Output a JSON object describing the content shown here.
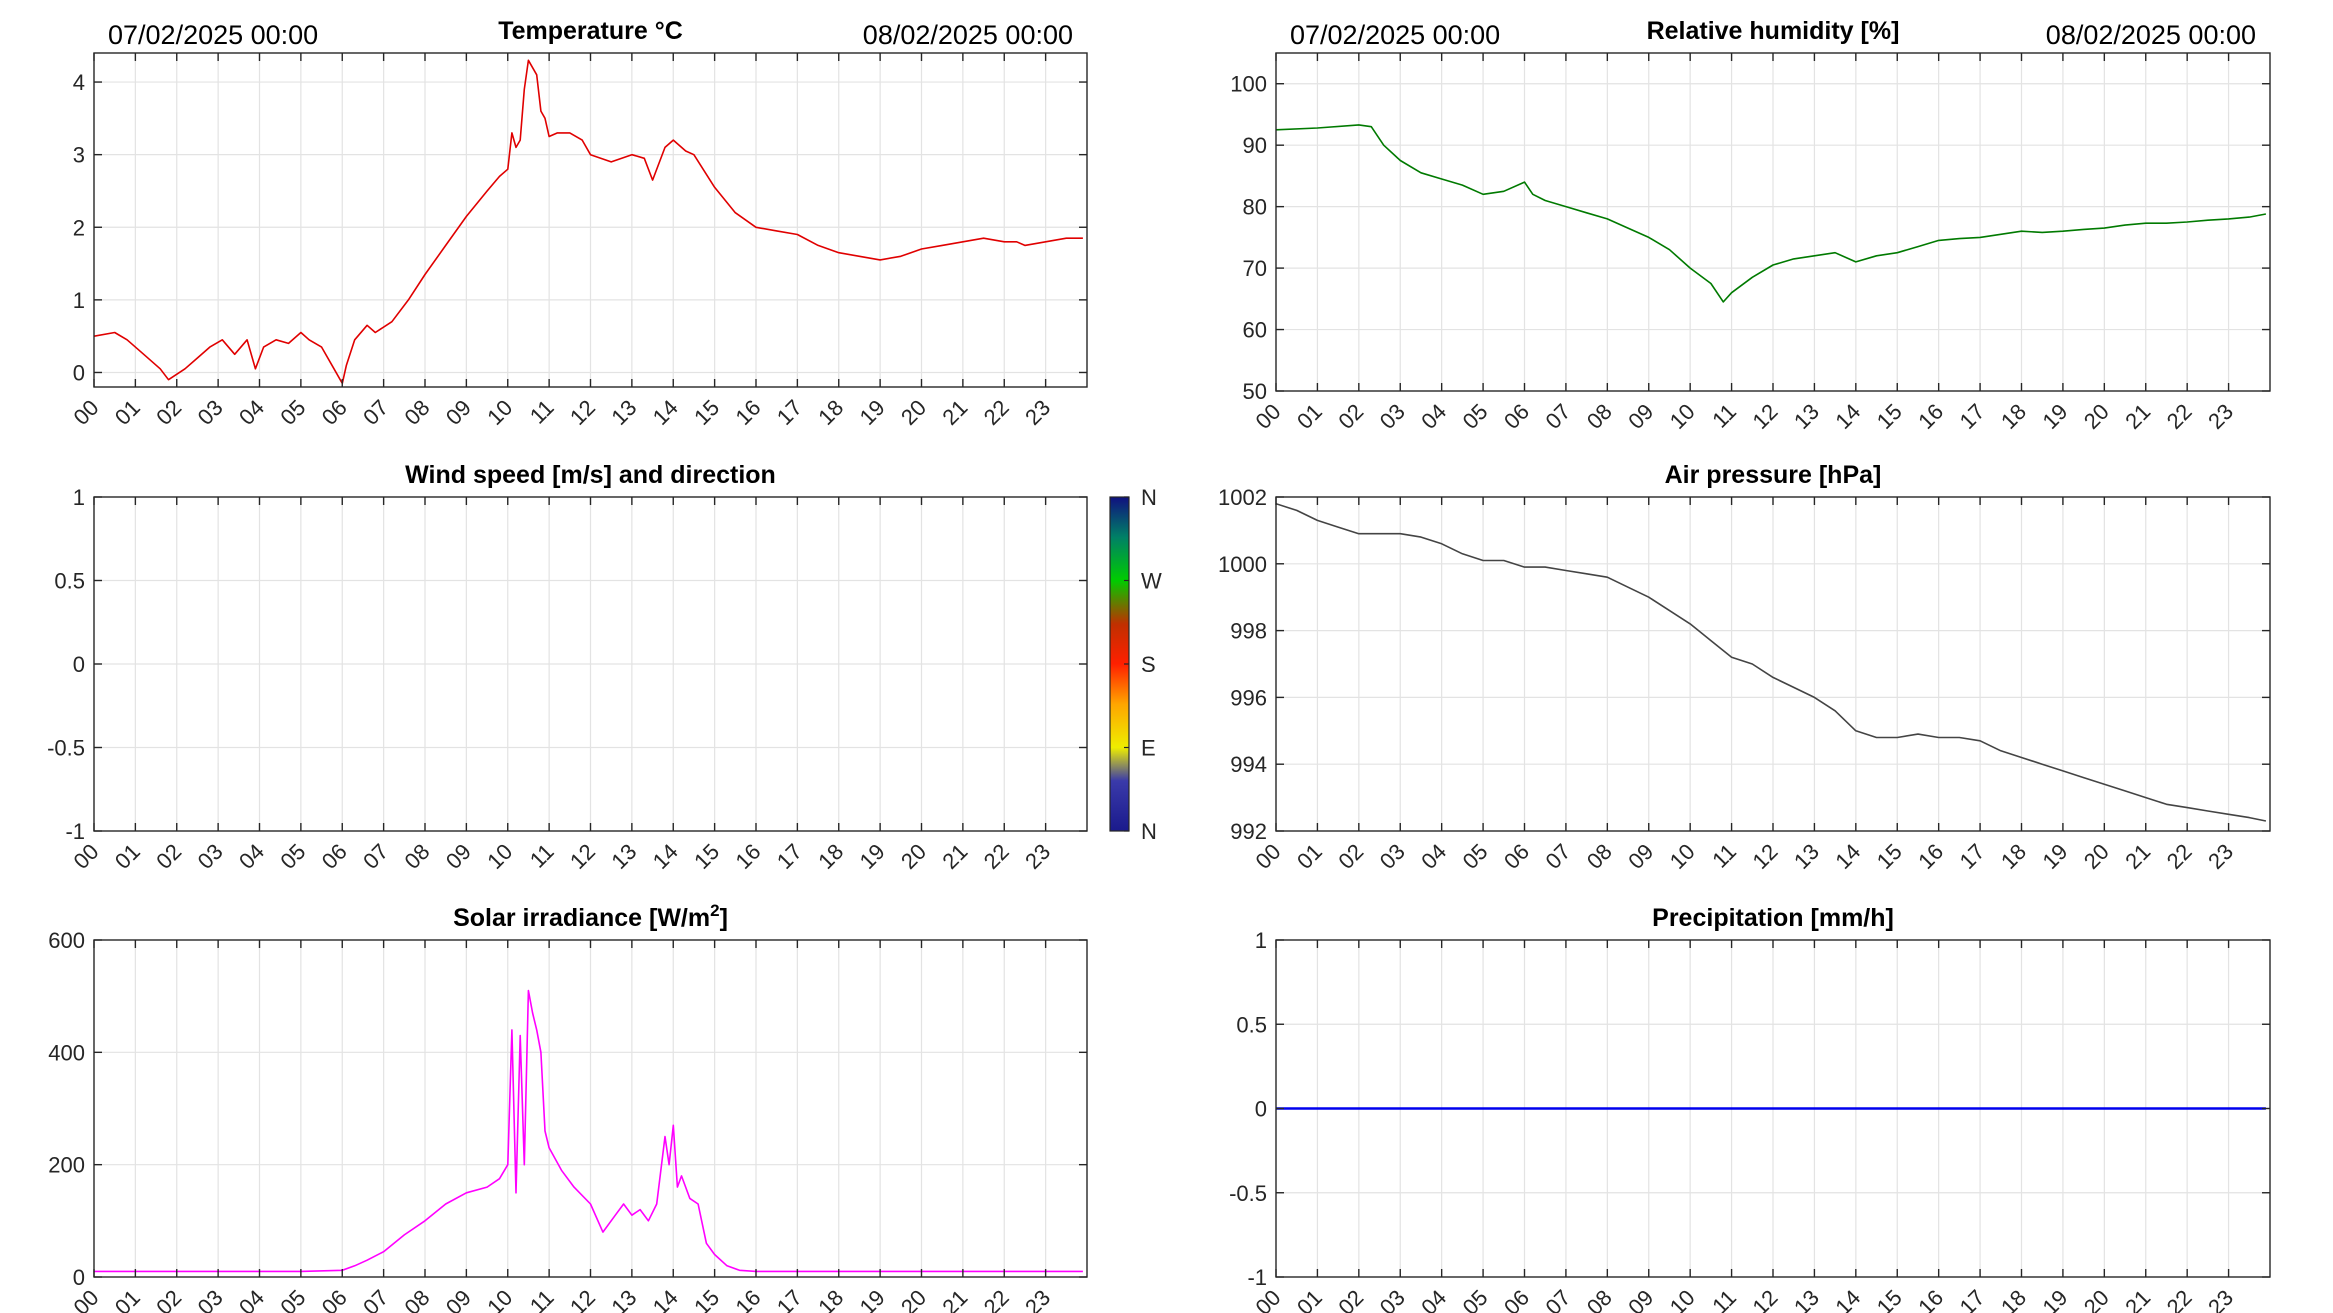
{
  "chart_data": [
    {
      "id": "temp",
      "type": "line",
      "title": "Temperature °C",
      "title_sup": "",
      "date_start": "07/02/2025 00:00",
      "date_end": "08/02/2025 00:00",
      "ylim": [
        -0.2,
        4.4
      ],
      "yticks": [
        0,
        1,
        2,
        3,
        4
      ],
      "ytick_labels": [
        "0",
        "1",
        "2",
        "3",
        "4"
      ],
      "xticks": [
        "00",
        "01",
        "02",
        "03",
        "04",
        "05",
        "06",
        "07",
        "08",
        "09",
        "10",
        "11",
        "12",
        "13",
        "14",
        "15",
        "16",
        "17",
        "18",
        "19",
        "20",
        "21",
        "22",
        "23"
      ],
      "color": "#e00000",
      "series": [
        {
          "x": [
            0,
            0.5,
            0.8,
            1.2,
            1.6,
            1.8,
            2.2,
            2.5,
            2.8,
            3.1,
            3.4,
            3.7,
            3.9,
            4.1,
            4.4,
            4.7,
            5.0,
            5.2,
            5.5,
            5.8,
            6.0,
            6.1,
            6.3,
            6.6,
            6.8,
            7.2,
            7.6,
            8.0,
            8.5,
            9.0,
            9.5,
            9.8,
            10.0,
            10.1,
            10.2,
            10.3,
            10.4,
            10.5,
            10.7,
            10.8,
            10.9,
            11.0,
            11.2,
            11.5,
            11.8,
            12.0,
            12.5,
            13.0,
            13.3,
            13.5,
            13.8,
            14.0,
            14.3,
            14.5,
            15.0,
            15.5,
            16.0,
            16.5,
            17.0,
            17.5,
            18.0,
            18.5,
            19.0,
            19.5,
            20.0,
            20.5,
            21.0,
            21.5,
            22.0,
            22.3,
            22.5,
            23.0,
            23.5,
            23.9
          ],
          "y": [
            0.5,
            0.55,
            0.45,
            0.25,
            0.05,
            -0.1,
            0.05,
            0.2,
            0.35,
            0.45,
            0.25,
            0.45,
            0.05,
            0.35,
            0.45,
            0.4,
            0.55,
            0.45,
            0.35,
            0.05,
            -0.15,
            0.1,
            0.45,
            0.65,
            0.55,
            0.7,
            1.0,
            1.35,
            1.75,
            2.15,
            2.5,
            2.7,
            2.8,
            3.3,
            3.1,
            3.2,
            3.9,
            4.3,
            4.1,
            3.6,
            3.5,
            3.25,
            3.3,
            3.3,
            3.2,
            3.0,
            2.9,
            3.0,
            2.95,
            2.65,
            3.1,
            3.2,
            3.05,
            3.0,
            2.55,
            2.2,
            2.0,
            1.95,
            1.9,
            1.75,
            1.65,
            1.6,
            1.55,
            1.6,
            1.7,
            1.75,
            1.8,
            1.85,
            1.8,
            1.8,
            1.75,
            1.8,
            1.85,
            1.85
          ]
        }
      ]
    },
    {
      "id": "rh",
      "type": "line",
      "title": "Relative humidity [%]",
      "title_sup": "",
      "date_start": "07/02/2025 00:00",
      "date_end": "08/02/2025 00:00",
      "ylim": [
        50,
        105
      ],
      "yticks": [
        50,
        60,
        70,
        80,
        90,
        100
      ],
      "ytick_labels": [
        "50",
        "60",
        "70",
        "80",
        "90",
        "100"
      ],
      "xticks": [
        "00",
        "01",
        "02",
        "03",
        "04",
        "05",
        "06",
        "07",
        "08",
        "09",
        "10",
        "11",
        "12",
        "13",
        "14",
        "15",
        "16",
        "17",
        "18",
        "19",
        "20",
        "21",
        "22",
        "23"
      ],
      "color": "#007a00",
      "series": [
        {
          "x": [
            0,
            1.0,
            2.0,
            2.3,
            2.6,
            3.0,
            3.5,
            4.0,
            4.5,
            5.0,
            5.5,
            6.0,
            6.2,
            6.5,
            7.0,
            7.5,
            8.0,
            8.5,
            9.0,
            9.5,
            10.0,
            10.5,
            10.8,
            11.0,
            11.5,
            12.0,
            12.5,
            13.0,
            13.5,
            14.0,
            14.5,
            15.0,
            15.5,
            16.0,
            16.5,
            17.0,
            17.5,
            18.0,
            18.5,
            19.0,
            19.5,
            20.0,
            20.5,
            21.0,
            21.5,
            22.0,
            22.5,
            23.0,
            23.5,
            23.9
          ],
          "y": [
            92.5,
            92.8,
            93.3,
            93.0,
            90.0,
            87.5,
            85.5,
            84.5,
            83.5,
            82.0,
            82.5,
            84.0,
            82.0,
            81.0,
            80.0,
            79.0,
            78.0,
            76.5,
            75.0,
            73.0,
            70.0,
            67.5,
            64.5,
            66.0,
            68.5,
            70.5,
            71.5,
            72.0,
            72.5,
            71.0,
            72.0,
            72.5,
            73.5,
            74.5,
            74.8,
            75.0,
            75.5,
            76.0,
            75.8,
            76.0,
            76.3,
            76.5,
            77.0,
            77.3,
            77.3,
            77.5,
            77.8,
            78.0,
            78.3,
            78.8
          ]
        }
      ]
    },
    {
      "id": "wind",
      "type": "line",
      "title": "Wind speed [m/s] and direction",
      "title_sup": "",
      "ylim": [
        -1,
        1
      ],
      "yticks": [
        -1,
        -0.5,
        0,
        0.5,
        1
      ],
      "ytick_labels": [
        "-1",
        "-0.5",
        "0",
        "0.5",
        "1"
      ],
      "xticks": [
        "00",
        "01",
        "02",
        "03",
        "04",
        "05",
        "06",
        "07",
        "08",
        "09",
        "10",
        "11",
        "12",
        "13",
        "14",
        "15",
        "16",
        "17",
        "18",
        "19",
        "20",
        "21",
        "22",
        "23"
      ],
      "color": "#000000",
      "series": [],
      "colorbar": {
        "labels": [
          "N",
          "W",
          "S",
          "E",
          "N"
        ]
      }
    },
    {
      "id": "press",
      "type": "line",
      "title": "Air pressure [hPa]",
      "title_sup": "",
      "ylim": [
        992,
        1002
      ],
      "yticks": [
        992,
        994,
        996,
        998,
        1000,
        1002
      ],
      "ytick_labels": [
        "992",
        "994",
        "996",
        "998",
        "1000",
        "1002"
      ],
      "xticks": [
        "00",
        "01",
        "02",
        "03",
        "04",
        "05",
        "06",
        "07",
        "08",
        "09",
        "10",
        "11",
        "12",
        "13",
        "14",
        "15",
        "16",
        "17",
        "18",
        "19",
        "20",
        "21",
        "22",
        "23"
      ],
      "color": "#444444",
      "series": [
        {
          "x": [
            0,
            0.5,
            1.0,
            1.5,
            2.0,
            2.5,
            3.0,
            3.5,
            4.0,
            4.5,
            5.0,
            5.5,
            6.0,
            6.5,
            7.0,
            7.5,
            8.0,
            8.5,
            9.0,
            9.5,
            10.0,
            10.5,
            11.0,
            11.5,
            12.0,
            12.5,
            13.0,
            13.5,
            14.0,
            14.5,
            15.0,
            15.5,
            16.0,
            16.5,
            17.0,
            17.5,
            18.0,
            18.5,
            19.0,
            19.5,
            20.0,
            20.5,
            21.0,
            21.5,
            22.0,
            22.5,
            23.0,
            23.5,
            23.9
          ],
          "y": [
            1001.8,
            1001.6,
            1001.3,
            1001.1,
            1000.9,
            1000.9,
            1000.9,
            1000.8,
            1000.6,
            1000.3,
            1000.1,
            1000.1,
            999.9,
            999.9,
            999.8,
            999.7,
            999.6,
            999.3,
            999.0,
            998.6,
            998.2,
            997.7,
            997.2,
            997.0,
            996.6,
            996.3,
            996.0,
            995.6,
            995.0,
            994.8,
            994.8,
            994.9,
            994.8,
            994.8,
            994.7,
            994.4,
            994.2,
            994.0,
            993.8,
            993.6,
            993.4,
            993.2,
            993.0,
            992.8,
            992.7,
            992.6,
            992.5,
            992.4,
            992.3
          ]
        }
      ]
    },
    {
      "id": "solar",
      "type": "line",
      "title": "Solar irradiance [W/m",
      "title_sup": "2",
      "title_tail": "]",
      "ylim": [
        0,
        600
      ],
      "yticks": [
        0,
        200,
        400,
        600
      ],
      "ytick_labels": [
        "0",
        "200",
        "400",
        "600"
      ],
      "xticks": [
        "00",
        "01",
        "02",
        "03",
        "04",
        "05",
        "06",
        "07",
        "08",
        "09",
        "10",
        "11",
        "12",
        "13",
        "14",
        "15",
        "16",
        "17",
        "18",
        "19",
        "20",
        "21",
        "22",
        "23"
      ],
      "color": "#ff00ff",
      "series": [
        {
          "x": [
            0,
            1,
            2,
            3,
            4,
            5,
            6.0,
            6.3,
            6.6,
            7.0,
            7.5,
            8.0,
            8.5,
            9.0,
            9.5,
            9.8,
            10.0,
            10.1,
            10.2,
            10.3,
            10.4,
            10.5,
            10.6,
            10.7,
            10.8,
            10.9,
            11.0,
            11.3,
            11.6,
            12.0,
            12.3,
            12.6,
            12.8,
            13.0,
            13.2,
            13.4,
            13.6,
            13.8,
            13.9,
            14.0,
            14.1,
            14.2,
            14.4,
            14.6,
            14.8,
            15.0,
            15.3,
            15.6,
            16.0,
            17,
            18,
            19,
            20,
            21,
            22,
            23,
            23.9
          ],
          "y": [
            10,
            10,
            10,
            10,
            10,
            10,
            12,
            20,
            30,
            45,
            75,
            100,
            130,
            150,
            160,
            175,
            200,
            440,
            150,
            430,
            200,
            510,
            470,
            440,
            400,
            260,
            230,
            190,
            160,
            130,
            80,
            110,
            130,
            110,
            120,
            100,
            130,
            250,
            200,
            270,
            160,
            180,
            140,
            130,
            60,
            40,
            20,
            12,
            10,
            10,
            10,
            10,
            10,
            10,
            10,
            10,
            10
          ]
        }
      ]
    },
    {
      "id": "precip",
      "type": "line",
      "title": "Precipitation [mm/h]",
      "title_sup": "",
      "ylim": [
        -1,
        1
      ],
      "yticks": [
        -1,
        -0.5,
        0,
        0.5,
        1
      ],
      "ytick_labels": [
        "-1",
        "-0.5",
        "0",
        "0.5",
        "1"
      ],
      "xticks": [
        "00",
        "01",
        "02",
        "03",
        "04",
        "05",
        "06",
        "07",
        "08",
        "09",
        "10",
        "11",
        "12",
        "13",
        "14",
        "15",
        "16",
        "17",
        "18",
        "19",
        "20",
        "21",
        "22",
        "23"
      ],
      "color": "#0000ee",
      "series": [
        {
          "x": [
            0,
            23.9
          ],
          "y": [
            0,
            0
          ]
        }
      ]
    }
  ]
}
